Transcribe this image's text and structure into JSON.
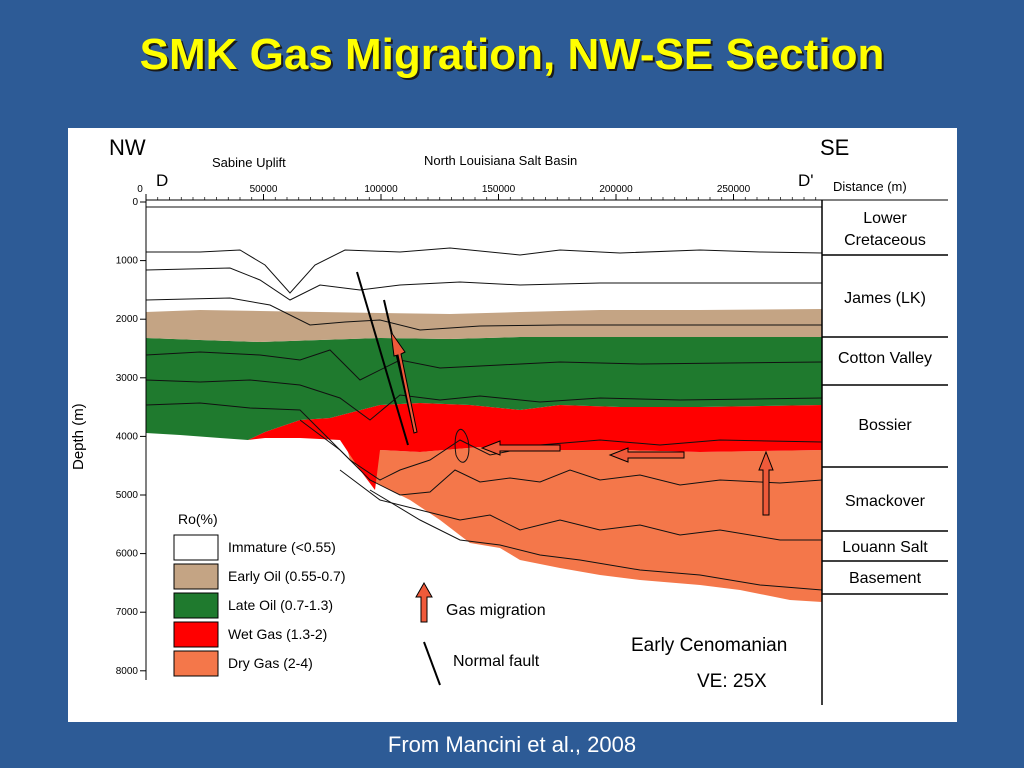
{
  "title": "SMK Gas Migration, NW-SE Section",
  "caption": "From Mancini et al., 2008",
  "section": {
    "left_dir": "NW",
    "right_dir": "SE",
    "left_point": "D",
    "right_point": "D'",
    "region_left": "Sabine Uplift",
    "region_center": "North Louisiana Salt Basin",
    "distance_label": "Distance (m)",
    "depth_label": "Depth (m)",
    "distance_ticks": [
      "0",
      "50000",
      "100000",
      "150000",
      "200000",
      "250000"
    ],
    "depth_ticks": [
      "0",
      "1000",
      "2000",
      "3000",
      "4000",
      "5000",
      "6000",
      "7000",
      "8000"
    ]
  },
  "formations": [
    {
      "label_lines": [
        "Lower",
        "Cretaceous"
      ]
    },
    {
      "label_lines": [
        "James (LK)"
      ]
    },
    {
      "label_lines": [
        "Cotton Valley"
      ]
    },
    {
      "label_lines": [
        "Bossier"
      ]
    },
    {
      "label_lines": [
        "Smackover"
      ]
    },
    {
      "label_lines": [
        "Louann Salt"
      ]
    },
    {
      "label_lines": [
        "Basement"
      ]
    }
  ],
  "legend": {
    "title": "Ro(%)",
    "items": [
      {
        "label": "Immature (<0.55)",
        "color": "#ffffff"
      },
      {
        "label": "Early Oil (0.55-0.7)",
        "color": "#c4a484"
      },
      {
        "label": "Late Oil (0.7-1.3)",
        "color": "#1f7a2e"
      },
      {
        "label": "Wet Gas (1.3-2)",
        "color": "#ff0000"
      },
      {
        "label": "Dry Gas (2-4)",
        "color": "#f4774a"
      }
    ],
    "gas_migration": "Gas migration",
    "normal_fault": "Normal fault"
  },
  "annotations": {
    "age": "Early Cenomanian",
    "vertical_exaggeration": "VE: 25X"
  }
}
